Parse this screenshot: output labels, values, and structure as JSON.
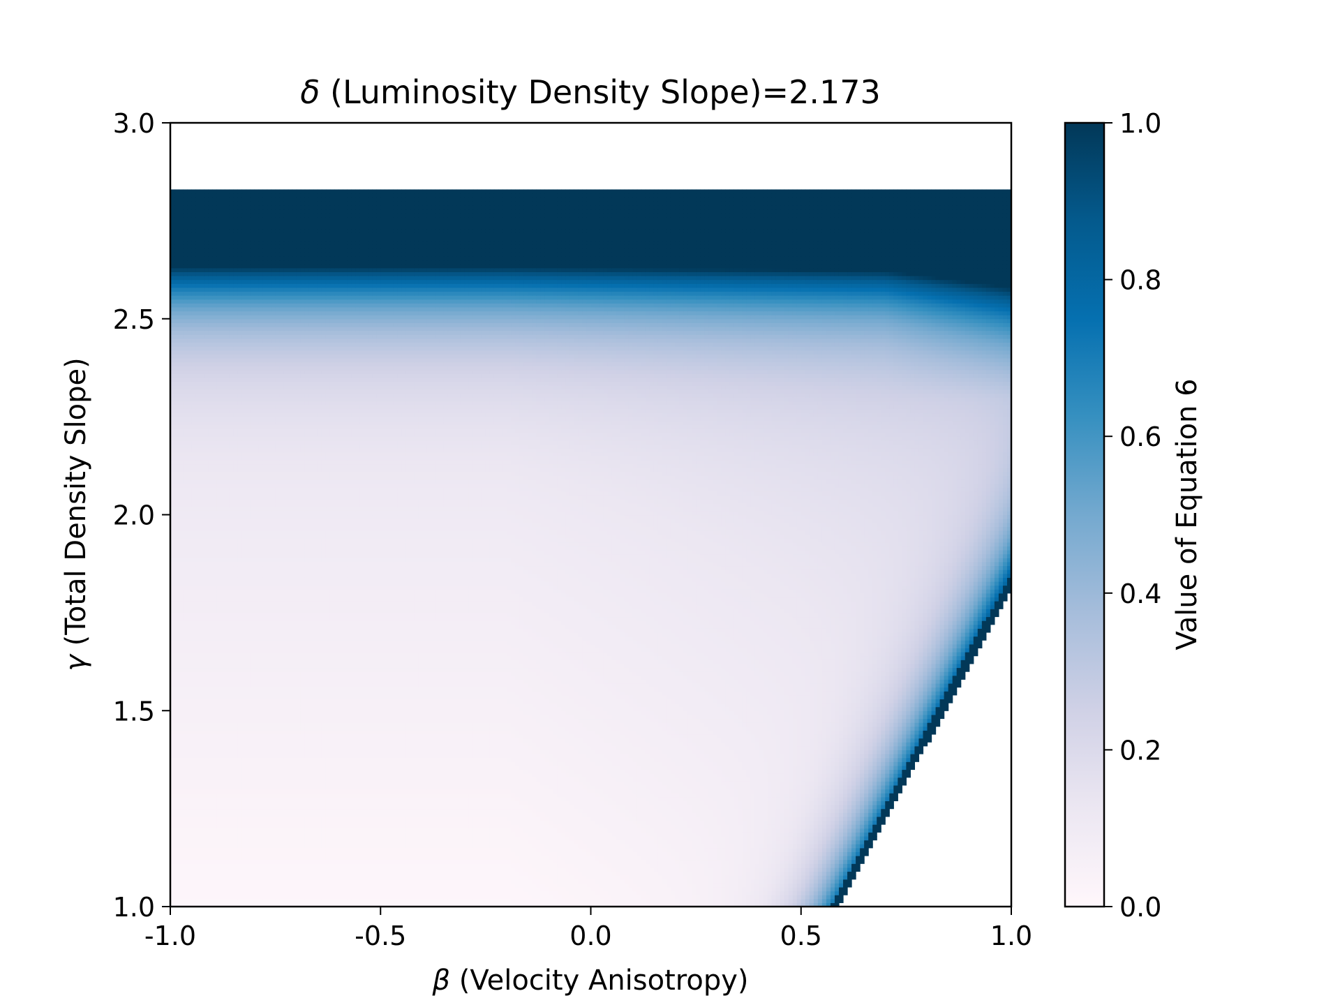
{
  "chart_data": {
    "type": "heatmap",
    "title_symbol": "δ",
    "title_text": " (Luminosity Density Slope)=2.173",
    "x_symbol": "β",
    "xlabel_text": " (Velocity Anisotropy)",
    "y_symbol": "γ",
    "ylabel_text": " (Total Density Slope)",
    "colorbar_label": "Value of Equation 6",
    "xlim": [
      -1.0,
      1.0
    ],
    "ylim": [
      1.0,
      3.0
    ],
    "clim": [
      0.0,
      1.0
    ],
    "x_ticks": [
      {
        "value": -1.0,
        "label": "-1.0"
      },
      {
        "value": -0.5,
        "label": "-0.5"
      },
      {
        "value": 0.0,
        "label": "0.0"
      },
      {
        "value": 0.5,
        "label": "0.5"
      },
      {
        "value": 1.0,
        "label": "1.0"
      }
    ],
    "y_ticks": [
      {
        "value": 1.0,
        "label": "1.0"
      },
      {
        "value": 1.5,
        "label": "1.5"
      },
      {
        "value": 2.0,
        "label": "2.0"
      },
      {
        "value": 2.5,
        "label": "2.5"
      },
      {
        "value": 3.0,
        "label": "3.0"
      }
    ],
    "colorbar_ticks": [
      {
        "value": 0.0,
        "label": "0.0"
      },
      {
        "value": 0.2,
        "label": "0.2"
      },
      {
        "value": 0.4,
        "label": "0.4"
      },
      {
        "value": 0.6,
        "label": "0.6"
      },
      {
        "value": 0.8,
        "label": "0.8"
      },
      {
        "value": 1.0,
        "label": "1.0"
      }
    ],
    "colormap": "PuBu",
    "colormap_stops": [
      "#fff7fb",
      "#ece7f2",
      "#d0d1e6",
      "#a6bddb",
      "#74a9cf",
      "#3690c0",
      "#0570b0",
      "#045a8d",
      "#023858"
    ],
    "regions": {
      "valid_gamma_max": 2.83,
      "saturated_band_gamma_min": 2.66,
      "invalid_boundary": [
        [
          0.59,
          1.0
        ],
        [
          1.0,
          1.81
        ]
      ]
    }
  }
}
